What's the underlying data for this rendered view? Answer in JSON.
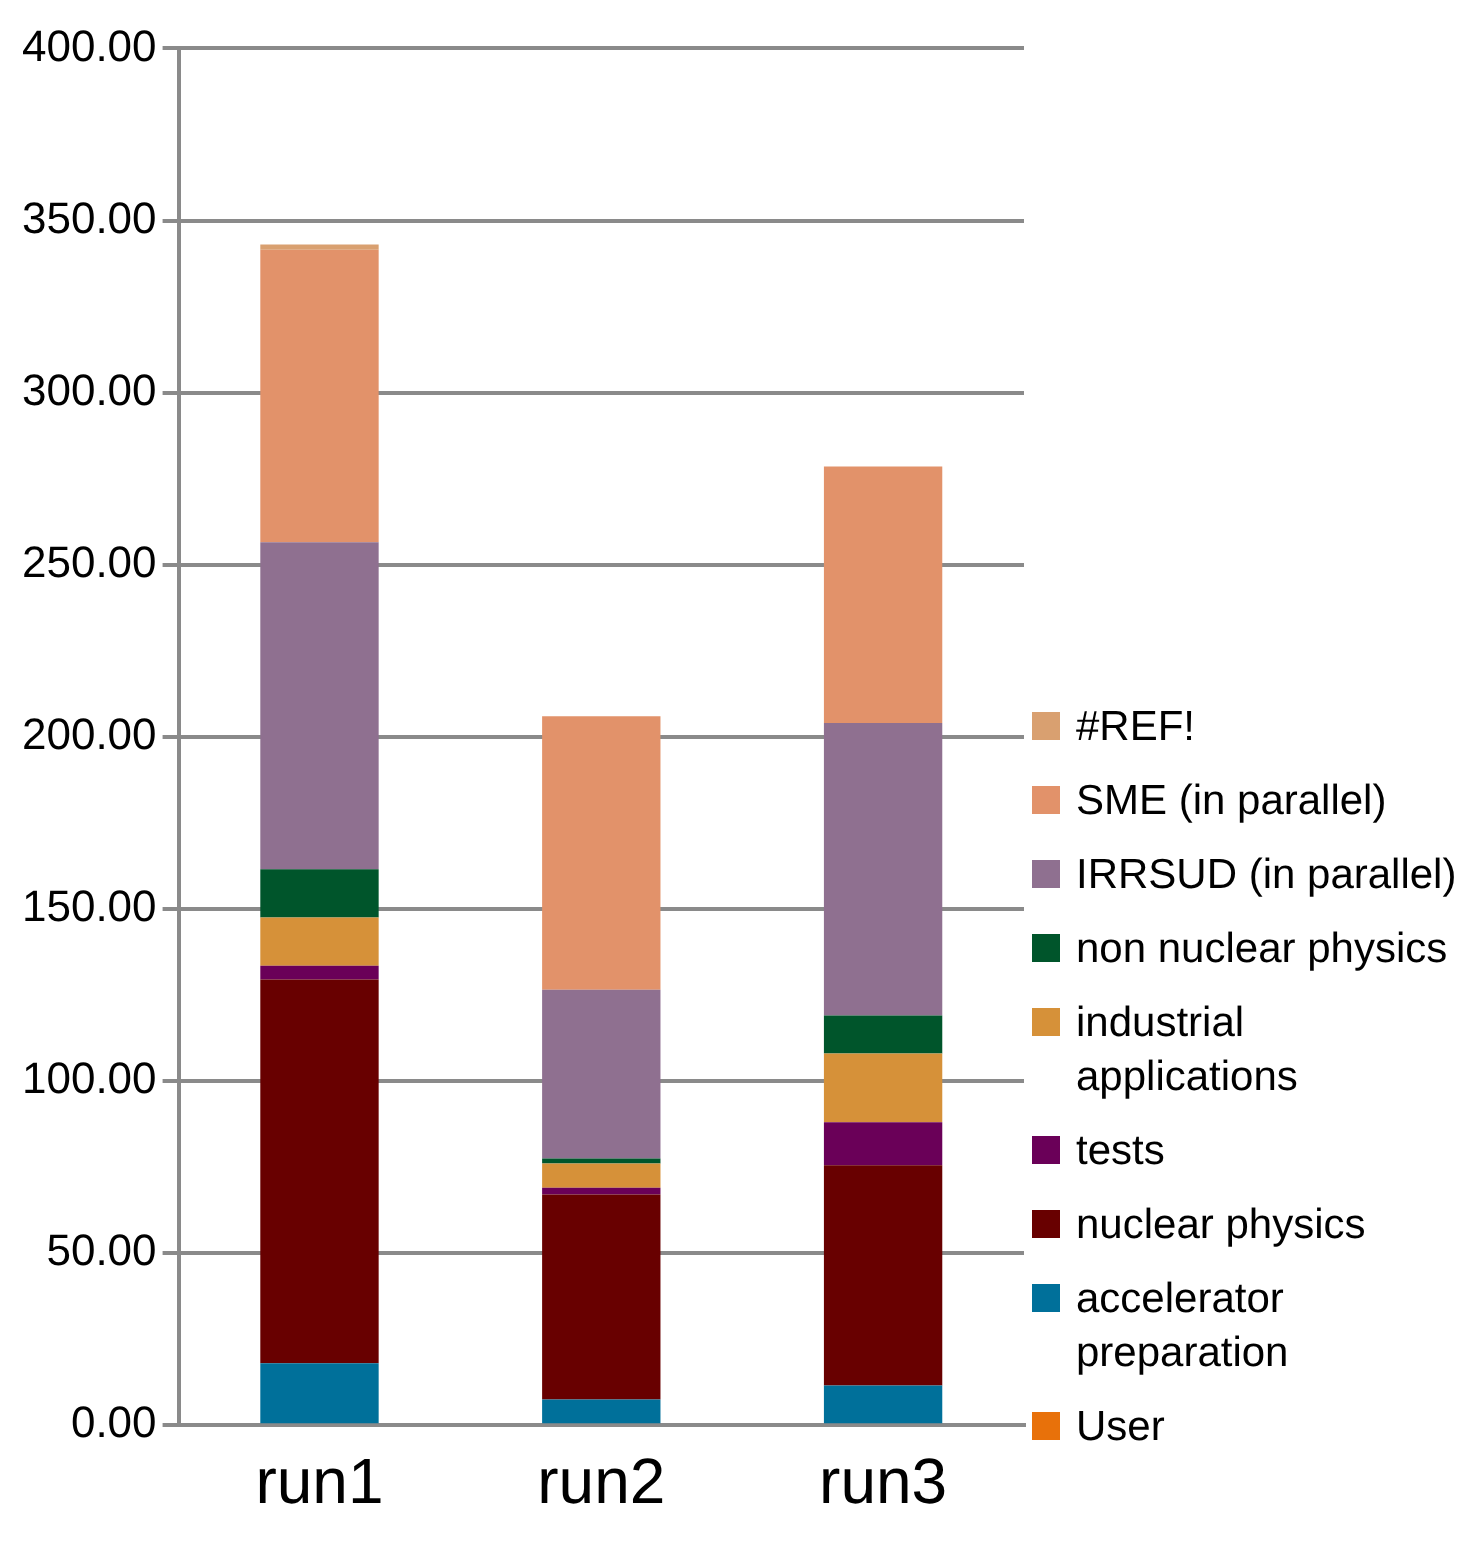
{
  "chart_data": {
    "type": "bar",
    "stacked": true,
    "categories": [
      "run1",
      "run2",
      "run3"
    ],
    "ylim": [
      0,
      400
    ],
    "yticks": [
      {
        "value": 0,
        "label": "0.00"
      },
      {
        "value": 50,
        "label": "50.00"
      },
      {
        "value": 100,
        "label": "100.00"
      },
      {
        "value": 150,
        "label": "150.00"
      },
      {
        "value": 200,
        "label": "200.00"
      },
      {
        "value": 250,
        "label": "250.00"
      },
      {
        "value": 300,
        "label": "300.00"
      },
      {
        "value": 350,
        "label": "350.00"
      },
      {
        "value": 400,
        "label": "400.00"
      }
    ],
    "grid": "y",
    "legend": "right",
    "series": [
      {
        "name": "User",
        "color": "#e8710a",
        "values": [
          0,
          0,
          0
        ]
      },
      {
        "name": "accelerator preparation",
        "color": "#00709a",
        "values": [
          18,
          7.5,
          11.5
        ]
      },
      {
        "name": "nuclear physics",
        "color": "#680000",
        "values": [
          111.5,
          59.5,
          64
        ]
      },
      {
        "name": "tests",
        "color": "#6a0058",
        "values": [
          4,
          2,
          12.5
        ]
      },
      {
        "name": "industrial applications",
        "color": "#d69139",
        "values": [
          14,
          7,
          20
        ]
      },
      {
        "name": "non nuclear physics",
        "color": "#00552b",
        "values": [
          14,
          1.5,
          11
        ]
      },
      {
        "name": "IRRSUD (in parallel)",
        "color": "#8f7090",
        "values": [
          95,
          49,
          85
        ]
      },
      {
        "name": "SME (in parallel)",
        "color": "#e2926a",
        "values": [
          85,
          79.5,
          74.5
        ]
      },
      {
        "name": "#REF!",
        "color": "#d9a070",
        "values": [
          1.5,
          0,
          0
        ]
      }
    ]
  }
}
